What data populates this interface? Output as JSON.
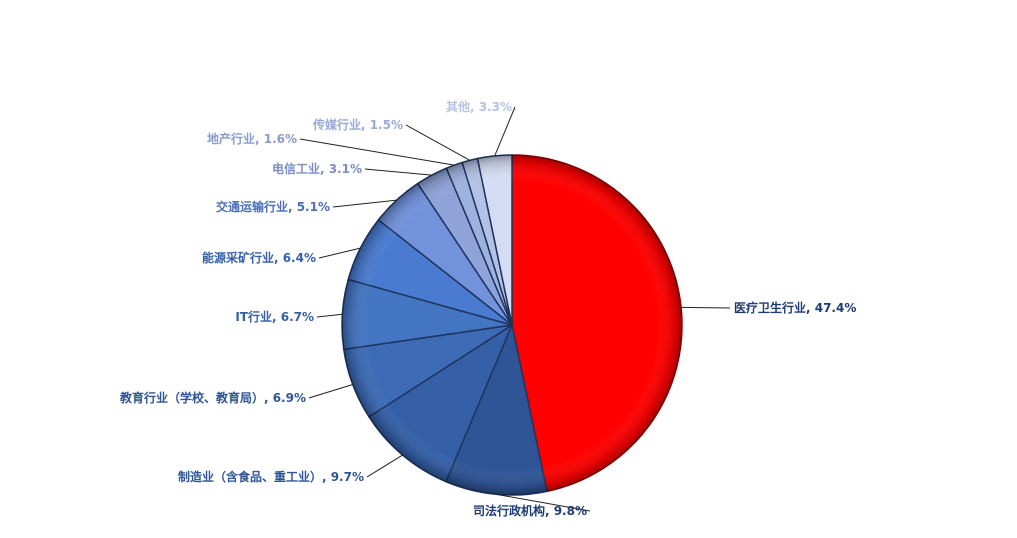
{
  "chart_data": {
    "type": "pie",
    "categories": [
      "医疗卫生行业",
      "司法行政机构",
      "制造业（含食品、重工业）",
      "教育行业（学校、教育局）",
      "IT行业",
      "能源采矿行业",
      "交通运输行业",
      "电信工业",
      "地产行业",
      "传媒行业",
      "其他"
    ],
    "values": [
      47.4,
      9.8,
      9.7,
      6.9,
      6.7,
      6.4,
      5.1,
      3.1,
      1.6,
      1.5,
      3.3
    ],
    "labels": [
      "医疗卫生行业, 47.4%",
      "司法行政机构, 9.8%",
      "制造业（含食品、重工业）, 9.7%",
      "教育行业（学校、教育局）, 6.9%",
      "IT行业, 6.7%",
      "能源采矿行业, 6.4%",
      "交通运输行业, 5.1%",
      "电信工业, 3.1%",
      "地产行业, 1.6%",
      "传媒行业, 1.5%",
      "其他, 3.3%"
    ],
    "colors": [
      "#ff0000",
      "#2f5597",
      "#3560a8",
      "#3d6bb6",
      "#4475c2",
      "#4a7bd0",
      "#7292dc",
      "#8fa3d8",
      "#9fb1de",
      "#b4c2e6",
      "#d3dcf2"
    ],
    "label_colors": [
      "#1f3b73",
      "#1f3b73",
      "#2f5597",
      "#2f5597",
      "#3560a8",
      "#3560a8",
      "#4a6fb6",
      "#7b8fc6",
      "#8a9bd0",
      "#9aaad6",
      "#b7c3e3"
    ],
    "title": "",
    "legend": "none"
  }
}
